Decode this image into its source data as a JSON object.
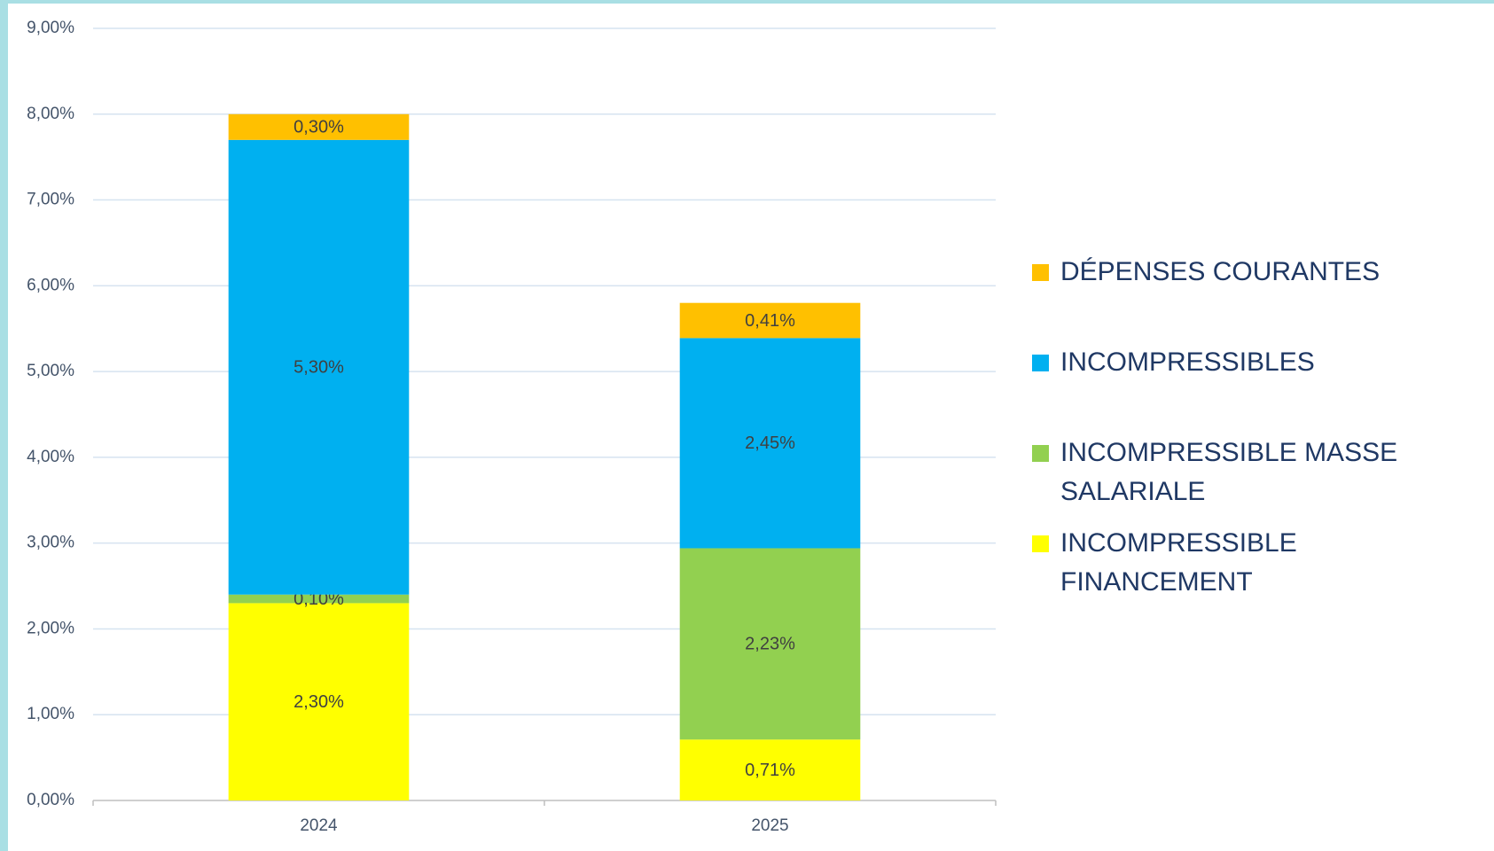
{
  "chart_data": {
    "type": "bar",
    "stacked": true,
    "categories": [
      "2024",
      "2025"
    ],
    "series": [
      {
        "name": "INCOMPRESSIBLE FINANCEMENT",
        "color": "#ffff00",
        "values": [
          2.3,
          0.71
        ],
        "value_labels": [
          "2,30%",
          "0,71%"
        ]
      },
      {
        "name": "INCOMPRESSIBLE MASSE SALARIALE",
        "color": "#92d050",
        "values": [
          0.1,
          2.23
        ],
        "value_labels": [
          "0,10%",
          "2,23%"
        ]
      },
      {
        "name": "INCOMPRESSIBLES",
        "color": "#00b0f0",
        "values": [
          5.3,
          2.45
        ],
        "value_labels": [
          "5,30%",
          "2,45%"
        ]
      },
      {
        "name": "DÉPENSES COURANTES",
        "color": "#ffc000",
        "values": [
          0.3,
          0.41
        ],
        "value_labels": [
          "0,30%",
          "0,41%"
        ]
      }
    ],
    "ylim": [
      0,
      9
    ],
    "yticks": [
      {
        "value": 0,
        "label": "0,00%"
      },
      {
        "value": 1,
        "label": "1,00%"
      },
      {
        "value": 2,
        "label": "2,00%"
      },
      {
        "value": 3,
        "label": "3,00%"
      },
      {
        "value": 4,
        "label": "4,00%"
      },
      {
        "value": 5,
        "label": "5,00%"
      },
      {
        "value": 6,
        "label": "6,00%"
      },
      {
        "value": 7,
        "label": "7,00%"
      },
      {
        "value": 8,
        "label": "8,00%"
      },
      {
        "value": 9,
        "label": "9,00%"
      }
    ],
    "grid": true,
    "legend": "right"
  }
}
